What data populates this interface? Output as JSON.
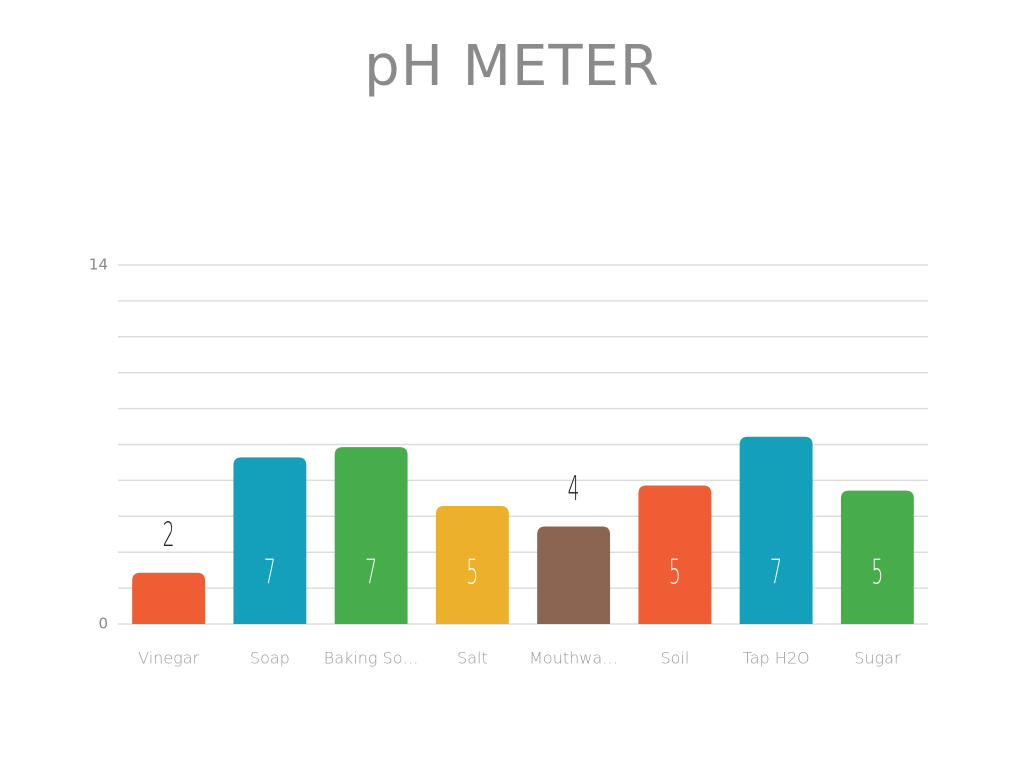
{
  "chart_data": {
    "type": "bar",
    "title": "pH METER",
    "categories": [
      "Vinegar",
      "Soap",
      "Baking So…",
      "Salt",
      "Mouthwa…",
      "Soil",
      "Tap H2O",
      "Sugar"
    ],
    "values": [
      2.0,
      6.5,
      6.9,
      4.6,
      3.8,
      5.4,
      7.3,
      5.2
    ],
    "value_labels": [
      "2",
      "7",
      "7",
      "5",
      "4",
      "5",
      "7",
      "5"
    ],
    "colors": [
      "#ef5d34",
      "#14a0bb",
      "#47ac4a",
      "#ecb02a",
      "#8b6551",
      "#ef5d34",
      "#14a0bb",
      "#47ac4a"
    ],
    "ylim": [
      0,
      14
    ],
    "yticks": [
      0,
      14
    ],
    "grid_lines": [
      0,
      1.4,
      2.8,
      4.2,
      5.6,
      7,
      8.4,
      9.8,
      11.2,
      12.6,
      14
    ],
    "grid": true
  }
}
